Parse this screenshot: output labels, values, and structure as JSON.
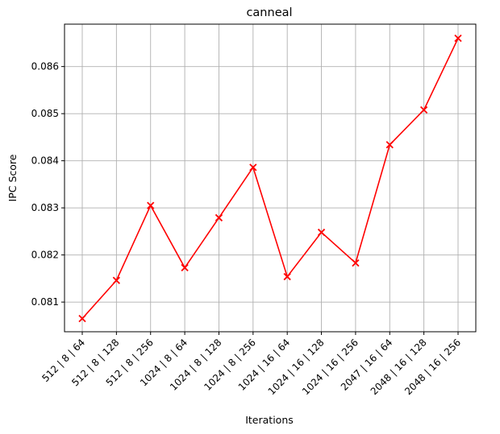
{
  "chart_data": {
    "type": "line",
    "title": "canneal",
    "xlabel": "Iterations",
    "ylabel": "IPC Score",
    "categories": [
      "512 | 8 | 64",
      "512 | 8 | 128",
      "512 | 8 | 256",
      "1024 | 8 | 64",
      "1024 | 8 | 128",
      "1024 | 8 | 256",
      "1024 | 16 | 64",
      "1024 | 16 | 128",
      "1024 | 16 | 256",
      "2047 | 16 | 64",
      "2048 | 16 | 128",
      "2048 | 16 | 256"
    ],
    "series": [
      {
        "values": [
          0.08065,
          0.08146,
          0.08305,
          0.08173,
          0.08279,
          0.08386,
          0.08154,
          0.08248,
          0.08183,
          0.08434,
          0.08508,
          0.0866
        ],
        "color": "#ff0000",
        "marker": "x"
      }
    ],
    "ylim": [
      0.08037,
      0.0869
    ],
    "yticks": [
      "0.081",
      "0.082",
      "0.083",
      "0.084",
      "0.085",
      "0.086"
    ],
    "ytick_values": [
      0.081,
      0.082,
      0.083,
      0.084,
      0.085,
      0.086
    ],
    "grid": true
  }
}
